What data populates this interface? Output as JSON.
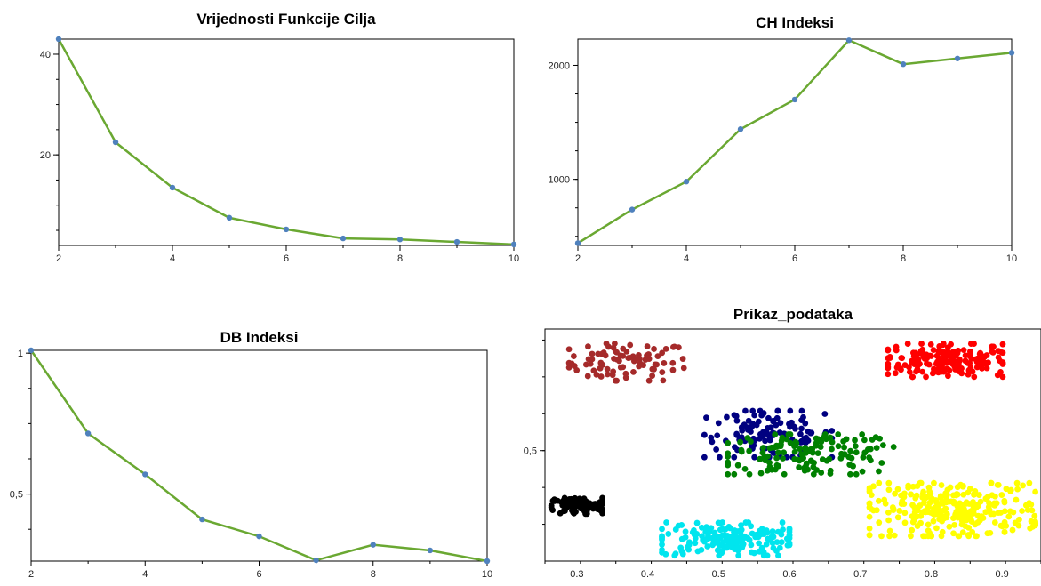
{
  "chart_data": [
    {
      "id": "objective",
      "type": "line",
      "title": "Vrijednosti Funkcije Cilja",
      "x": [
        2,
        3,
        4,
        5,
        6,
        7,
        8,
        9,
        10
      ],
      "series": [
        {
          "values": [
            43,
            22.5,
            13.5,
            7.5,
            5.2,
            3.4,
            3.2,
            2.7,
            2.2
          ]
        }
      ],
      "xlim": [
        2,
        10
      ],
      "ylim": [
        2,
        43
      ],
      "xticks": [
        2,
        4,
        6,
        8,
        10
      ],
      "yticks": [
        20,
        40
      ],
      "xtick_labels": [
        "2",
        "4",
        "6",
        "8",
        "10"
      ],
      "ytick_labels": [
        "20",
        "40"
      ],
      "line_color": "#6aa832",
      "marker_color": "#4f81bd",
      "grid": false
    },
    {
      "id": "ch",
      "type": "line",
      "title": "CH Indeksi",
      "x": [
        2,
        3,
        4,
        5,
        6,
        7,
        8,
        9,
        10
      ],
      "series": [
        {
          "values": [
            440,
            735,
            980,
            1440,
            1700,
            2220,
            2010,
            2060,
            2110
          ]
        }
      ],
      "xlim": [
        2,
        10
      ],
      "ylim": [
        420,
        2230
      ],
      "xticks": [
        2,
        4,
        6,
        8,
        10
      ],
      "yticks": [
        1000,
        2000
      ],
      "xtick_labels": [
        "2",
        "4",
        "6",
        "8",
        "10"
      ],
      "ytick_labels": [
        "1000",
        "2000"
      ],
      "line_color": "#6aa832",
      "marker_color": "#4f81bd",
      "grid": false
    },
    {
      "id": "db",
      "type": "line",
      "title": "DB Indeksi",
      "x": [
        2,
        3,
        4,
        5,
        6,
        7,
        8,
        9,
        10
      ],
      "series": [
        {
          "values": [
            1.01,
            0.715,
            0.57,
            0.41,
            0.35,
            0.265,
            0.32,
            0.3,
            0.262
          ]
        }
      ],
      "xlim": [
        2,
        10
      ],
      "ylim": [
        0.262,
        1.01
      ],
      "xticks": [
        2,
        4,
        6,
        8,
        10
      ],
      "yticks": [
        0.5,
        1
      ],
      "xtick_labels": [
        "2",
        "4",
        "6",
        "8",
        "10"
      ],
      "ytick_labels": [
        "0,5",
        "1"
      ],
      "line_color": "#6aa832",
      "marker_color": "#4f81bd",
      "grid": false
    },
    {
      "id": "scatter",
      "type": "scatter",
      "title": "Prikaz_podataka",
      "xlim": [
        0.255,
        0.955
      ],
      "ylim": [
        0.2,
        0.83
      ],
      "xticks": [
        0.3,
        0.4,
        0.5,
        0.6,
        0.7,
        0.8,
        0.9
      ],
      "yticks": [
        0.5
      ],
      "xtick_labels": [
        "0.3",
        "0.4",
        "0.5",
        "0.6",
        "0.7",
        "0.8",
        "0.9"
      ],
      "ytick_labels": [
        "0,5"
      ],
      "grid": false,
      "clusters": [
        {
          "color": "#a52a2a",
          "center": [
            0.37,
            0.74
          ],
          "spread": [
            0.045,
            0.028
          ],
          "count": 85
        },
        {
          "color": "#ff0000",
          "center": [
            0.82,
            0.745
          ],
          "spread": [
            0.045,
            0.025
          ],
          "count": 190
        },
        {
          "color": "#000080",
          "center": [
            0.57,
            0.545
          ],
          "spread": [
            0.05,
            0.035
          ],
          "count": 115
        },
        {
          "color": "#008000",
          "center": [
            0.63,
            0.49
          ],
          "spread": [
            0.065,
            0.03
          ],
          "count": 140
        },
        {
          "color": "#000000",
          "center": [
            0.3,
            0.35
          ],
          "spread": [
            0.02,
            0.012
          ],
          "count": 110
        },
        {
          "color": "#00e5ee",
          "center": [
            0.51,
            0.26
          ],
          "spread": [
            0.05,
            0.025
          ],
          "count": 180
        },
        {
          "color": "#ffff00",
          "center": [
            0.83,
            0.34
          ],
          "spread": [
            0.065,
            0.04
          ],
          "count": 290
        }
      ]
    }
  ]
}
